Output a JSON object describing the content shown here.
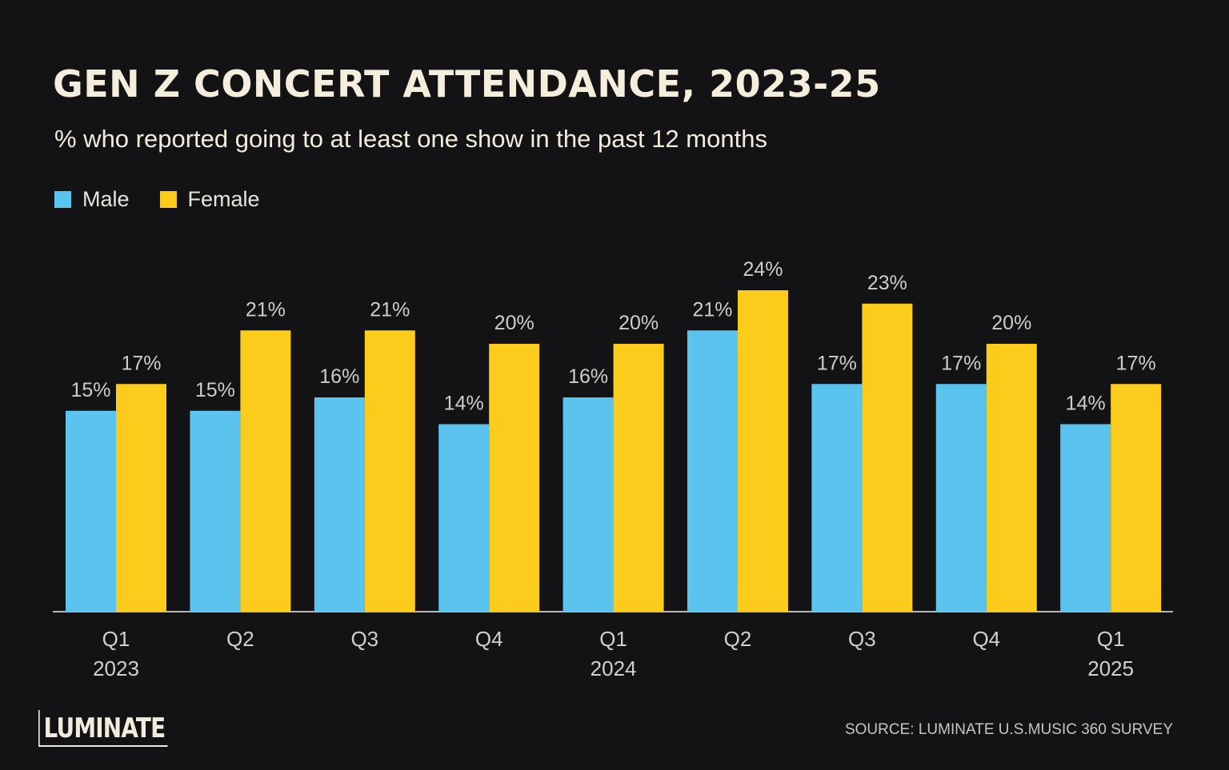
{
  "header": {
    "title": "GEN Z CONCERT ATTENDANCE, 2023-25",
    "subtitle": "% who reported going to at least one show in the past 12 months"
  },
  "legend": {
    "male_label": "Male",
    "female_label": "Female"
  },
  "footer": {
    "logo": "LUMINATE",
    "source": "SOURCE: LUMINATE U.S.MUSIC 360 SURVEY"
  },
  "colors": {
    "background": "#131316",
    "male": "#5bc4ee",
    "female": "#fccc1c",
    "axis": "#b8b6b2"
  },
  "chart_data": {
    "type": "bar",
    "title": "GEN Z CONCERT ATTENDANCE, 2023-25",
    "subtitle": "% who reported going to at least one show in the past 12 months",
    "categories": [
      [
        "Q1",
        "2023"
      ],
      [
        "Q2",
        ""
      ],
      [
        "Q3",
        ""
      ],
      [
        "Q4",
        ""
      ],
      [
        "Q1",
        "2024"
      ],
      [
        "Q2",
        ""
      ],
      [
        "Q3",
        ""
      ],
      [
        "Q4",
        ""
      ],
      [
        "Q1",
        "2025"
      ]
    ],
    "series": [
      {
        "name": "Male",
        "values": [
          15,
          15,
          16,
          14,
          16,
          21,
          17,
          17,
          14
        ],
        "color": "#5bc4ee"
      },
      {
        "name": "Female",
        "values": [
          17,
          21,
          21,
          20,
          20,
          24,
          23,
          20,
          17
        ],
        "color": "#fccc1c"
      }
    ],
    "data_label_suffix": "%",
    "xlabel": "",
    "ylabel": "",
    "ylim": [
      0,
      24
    ],
    "grid": false,
    "legend_position": "top-left"
  }
}
